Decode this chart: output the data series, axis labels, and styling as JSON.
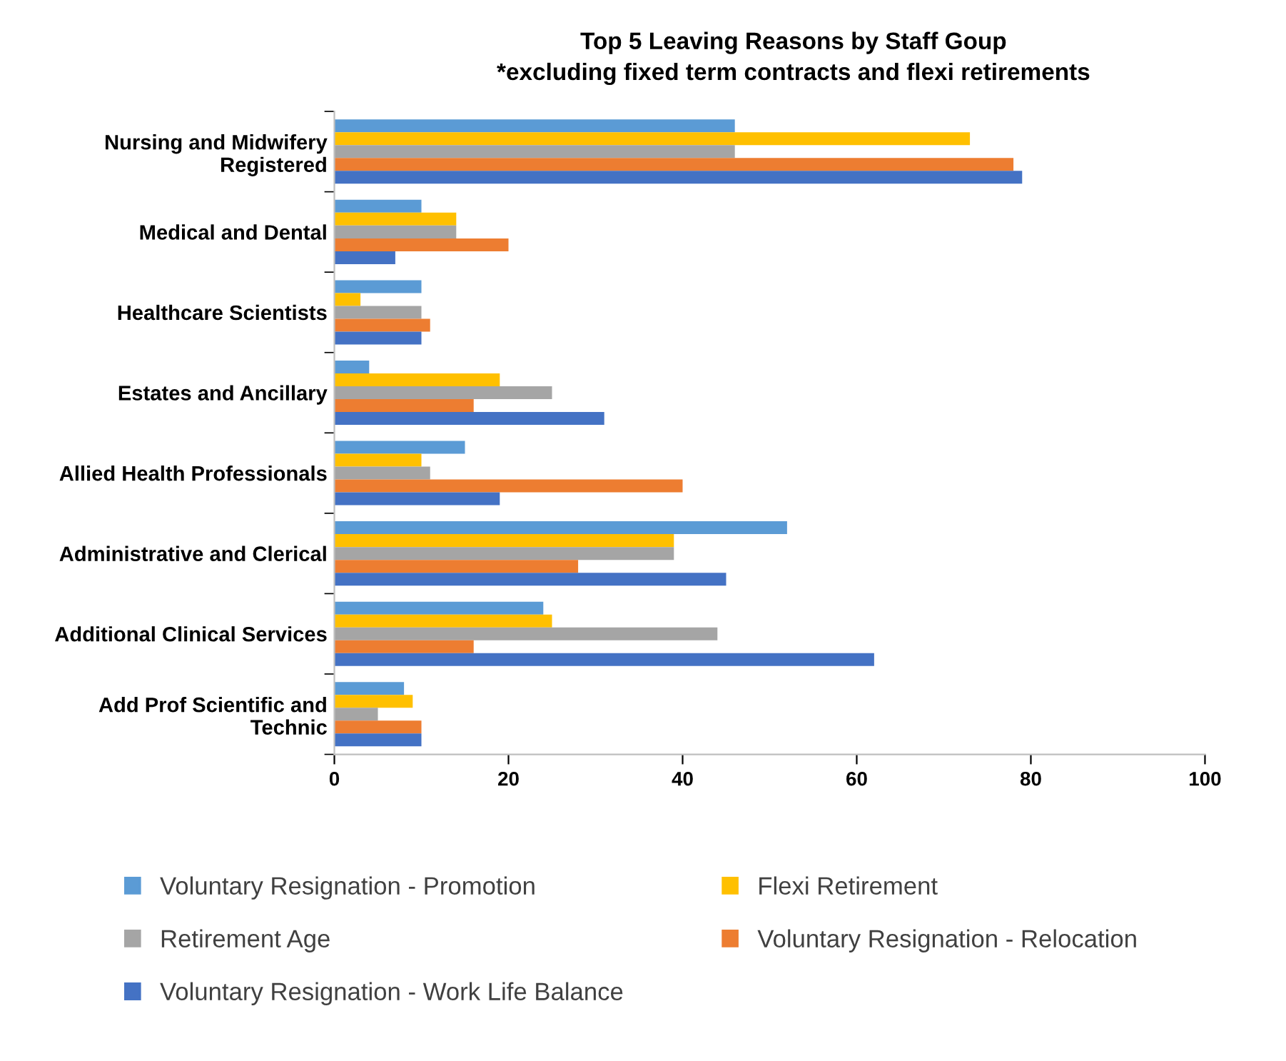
{
  "chart_data": {
    "type": "bar",
    "orientation": "horizontal",
    "title": "Top 5 Leaving Reasons by Staff Goup\n*excluding fixed term contracts and flexi retirements",
    "categories": [
      "Nursing and Midwifery\nRegistered",
      "Medical and Dental",
      "Healthcare Scientists",
      "Estates and Ancillary",
      "Allied Health Professionals",
      "Administrative and Clerical",
      "Additional Clinical Services",
      "Add Prof Scientific and\nTechnic"
    ],
    "series": [
      {
        "name": "Voluntary Resignation - Promotion",
        "color": "#5b9bd5",
        "values": [
          46,
          10,
          10,
          4,
          15,
          52,
          24,
          8
        ]
      },
      {
        "name": "Flexi Retirement",
        "color": "#ffc000",
        "values": [
          73,
          14,
          3,
          19,
          10,
          39,
          25,
          9
        ]
      },
      {
        "name": "Retirement Age",
        "color": "#a5a5a5",
        "values": [
          46,
          14,
          10,
          25,
          11,
          39,
          44,
          5
        ]
      },
      {
        "name": "Voluntary Resignation - Relocation",
        "color": "#ed7d31",
        "values": [
          78,
          20,
          11,
          16,
          40,
          28,
          16,
          10
        ]
      },
      {
        "name": "Voluntary Resignation - Work Life Balance",
        "color": "#4472c4",
        "values": [
          79,
          7,
          10,
          31,
          19,
          45,
          62,
          10
        ]
      }
    ],
    "xlim": [
      0,
      100
    ],
    "xticks": [
      0,
      20,
      40,
      60,
      80,
      100
    ],
    "grid": false,
    "legend": "bottom"
  }
}
